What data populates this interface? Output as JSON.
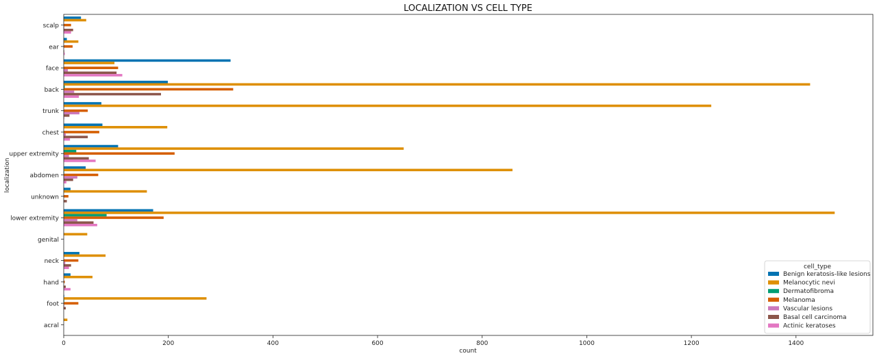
{
  "chart_data": {
    "type": "bar",
    "orientation": "horizontal",
    "title": "LOCALIZATION VS CELL TYPE",
    "xlabel": "count",
    "ylabel": "localization",
    "xlim": [
      0,
      1547
    ],
    "x_ticks": [
      0,
      200,
      400,
      600,
      800,
      1000,
      1200,
      1400
    ],
    "grid": false,
    "legend": {
      "title": "cell_type",
      "placement": "lower-right"
    },
    "categories": [
      "scalp",
      "ear",
      "face",
      "back",
      "trunk",
      "chest",
      "upper extremity",
      "abdomen",
      "unknown",
      "lower extremity",
      "genital",
      "neck",
      "hand",
      "foot",
      "acral"
    ],
    "series": [
      {
        "name": "Benign keratosis-like lesions",
        "color": "#0173b2",
        "values": [
          33,
          6,
          319,
          199,
          72,
          74,
          104,
          42,
          13,
          171,
          0,
          30,
          13,
          1,
          0
        ]
      },
      {
        "name": "Melanocytic nevi",
        "color": "#de8f05",
        "values": [
          43,
          28,
          97,
          1427,
          1238,
          198,
          650,
          858,
          159,
          1474,
          45,
          80,
          55,
          273,
          7
        ]
      },
      {
        "name": "Dermatofibroma",
        "color": "#029e73",
        "values": [
          0,
          0,
          0,
          2,
          0,
          0,
          24,
          1,
          0,
          82,
          0,
          0,
          0,
          1,
          0
        ]
      },
      {
        "name": "Melanoma",
        "color": "#d55e00",
        "values": [
          14,
          17,
          104,
          324,
          46,
          68,
          212,
          66,
          9,
          191,
          0,
          28,
          2,
          28,
          0
        ]
      },
      {
        "name": "Vascular lesions",
        "color": "#cc78bc",
        "values": [
          1,
          0,
          8,
          20,
          30,
          4,
          10,
          26,
          0,
          26,
          0,
          3,
          0,
          1,
          0
        ]
      },
      {
        "name": "Basal cell carcinoma",
        "color": "#8c564b",
        "values": [
          18,
          1,
          101,
          186,
          11,
          46,
          48,
          18,
          6,
          57,
          0,
          14,
          4,
          4,
          0
        ]
      },
      {
        "name": "Actinic keratoses",
        "color": "#e377c2",
        "values": [
          14,
          2,
          112,
          29,
          1,
          12,
          61,
          5,
          0,
          64,
          0,
          10,
          13,
          0,
          0
        ]
      }
    ]
  }
}
